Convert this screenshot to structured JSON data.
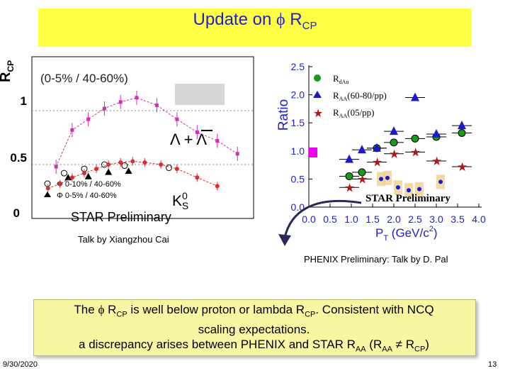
{
  "slide": {
    "title_prefix": "Update on ",
    "title_phi": "ϕ",
    "title_r": " R",
    "title_sub": "CP",
    "date": "9/30/2020",
    "page": "13",
    "phenix_caption": "PHENIX Preliminary: Talk by D. Pal",
    "star_caption": "Talk by Xiangzhou Cai",
    "footer_l1a": "The ",
    "footer_l1phi": "ϕ",
    "footer_l1b": " R",
    "footer_l1sub": "CP",
    "footer_l1c": " is well below proton or lambda R",
    "footer_l1sub2": "CP",
    "footer_l1d": ". Consistent with NCQ",
    "footer_l2": "scaling expectations.",
    "footer_l3a": "a discrepancy arises between PHENIX and STAR R",
    "footer_l3sub1": "AA",
    "footer_l3b": " (R",
    "footer_l3sub2": "AA",
    "footer_l3c": " ≠ R",
    "footer_l3sub3": "CP",
    "footer_l3d": ")"
  },
  "chart_data": [
    {
      "type": "scatter",
      "title": "(0-5% / 40-60%)",
      "ylabel": "R",
      "ylabel_sub": "CP",
      "yticks": [
        "0",
        "0.5",
        "1"
      ],
      "ylim": [
        0,
        1.5
      ],
      "xlim": [
        0,
        5.5
      ],
      "annotations": [
        "Λ + Λ",
        "K",
        "0",
        "S",
        "STAR Preliminary"
      ],
      "legend": [
        "Φ 0-10% / 40-60%",
        "Φ 0-5% / 40-60%"
      ],
      "series": [
        {
          "name": "Φ 0-10% / 40-60%",
          "marker": "open-circle",
          "x": [
            0.8,
            1.3,
            1.8,
            2.3,
            3.4
          ],
          "y": [
            0.42,
            0.46,
            0.5,
            0.49,
            0.47
          ]
        },
        {
          "name": "Φ 0-5% / 40-60%",
          "marker": "filled-triangle",
          "x": [
            0.9,
            1.4,
            1.9,
            2.4
          ],
          "y": [
            0.38,
            0.39,
            0.43,
            0.44
          ]
        },
        {
          "name": "Λ + Λ",
          "marker": "magenta-square",
          "x": [
            0.6,
            1.0,
            1.4,
            1.8,
            2.2,
            2.6,
            3.1,
            3.6,
            4.1,
            4.6,
            5.1
          ],
          "y": [
            0.48,
            0.82,
            0.92,
            1.02,
            1.08,
            1.12,
            1.05,
            0.92,
            0.8,
            0.72,
            0.6
          ]
        },
        {
          "name": "K0S",
          "marker": "red-circle",
          "x": [
            0.4,
            0.7,
            1.0,
            1.3,
            1.6,
            1.9,
            2.2,
            2.5,
            2.8,
            3.2,
            3.6,
            4.1,
            4.6
          ],
          "y": [
            0.28,
            0.32,
            0.38,
            0.42,
            0.46,
            0.5,
            0.52,
            0.53,
            0.52,
            0.5,
            0.46,
            0.38,
            0.3
          ]
        }
      ]
    },
    {
      "type": "scatter",
      "ylabel": "Ratio",
      "xlabel": "P",
      "xlabel_sub": "T",
      "xlabel_unit": " (GeV/c",
      "xlabel_sup": "2",
      "xlabel_end": ")",
      "xticks": [
        "0.0",
        "0.5",
        "1.0",
        "1.5",
        "2.0",
        "2.5",
        "3.0",
        "3.5",
        "4.0"
      ],
      "yticks": [
        "0.0",
        "0.5",
        "1.0",
        "1.5",
        "2.0",
        "2.5"
      ],
      "xlim": [
        0,
        4.0
      ],
      "ylim": [
        0,
        2.5
      ],
      "annotation": "STAR Preliminary",
      "legend": [
        {
          "label": "R",
          "sub": "dAu",
          "marker": "green-circle"
        },
        {
          "label": "R",
          "sub": "AA",
          "rest": "(60-80/pp)",
          "marker": "blue-triangle"
        },
        {
          "label": "R",
          "sub": "AA",
          "rest": "(05/pp)",
          "marker": "red-star"
        }
      ],
      "series": [
        {
          "name": "RdAu",
          "marker": "green-circle",
          "x": [
            0.95,
            1.25,
            1.6,
            2.0,
            2.5,
            3.0,
            3.6
          ],
          "y": [
            0.55,
            0.62,
            1.05,
            1.15,
            1.22,
            1.25,
            1.32
          ]
        },
        {
          "name": "RAA(60-80/pp)",
          "marker": "blue-triangle",
          "x": [
            0.95,
            1.25,
            1.6,
            2.0,
            2.5,
            3.0,
            3.6
          ],
          "y": [
            0.85,
            1.02,
            1.05,
            1.35,
            1.95,
            1.3,
            1.45
          ]
        },
        {
          "name": "RAA(05/pp)",
          "marker": "red-star",
          "x": [
            0.95,
            1.25,
            1.6,
            2.0,
            2.5,
            3.0,
            3.6
          ],
          "y": [
            0.35,
            0.5,
            0.8,
            0.95,
            0.98,
            0.82,
            0.72
          ]
        },
        {
          "name": "STAR",
          "marker": "blue-dot",
          "x": [
            1.7,
            1.85,
            2.1,
            2.35,
            2.6,
            3.1
          ],
          "y": [
            0.5,
            0.52,
            0.35,
            0.3,
            0.32,
            0.45
          ]
        }
      ]
    }
  ]
}
